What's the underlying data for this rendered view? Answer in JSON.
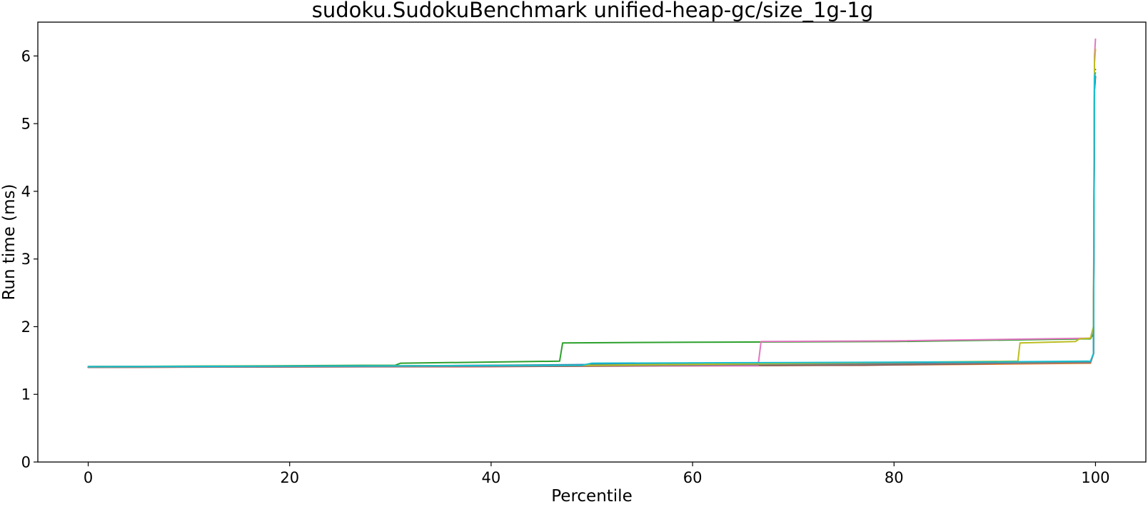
{
  "chart_data": {
    "type": "line",
    "title": "sudoku.SudokuBenchmark unified-heap-gc/size_1g-1g",
    "xlabel": "Percentile",
    "ylabel": "Run time (ms)",
    "xlim": [
      -5,
      105
    ],
    "ylim": [
      0,
      6.5
    ],
    "xticks": [
      0,
      20,
      40,
      60,
      80,
      100
    ],
    "yticks": [
      0,
      1,
      2,
      3,
      4,
      5,
      6
    ],
    "grid": false,
    "legend": "none",
    "series": [
      {
        "color": "#1f77b4",
        "x": [
          0,
          30,
          50,
          70,
          90,
          99.5,
          99.8,
          99.9,
          100
        ],
        "y": [
          1.41,
          1.42,
          1.44,
          1.46,
          1.47,
          1.48,
          1.6,
          5.8,
          5.8
        ]
      },
      {
        "color": "#ff7f0e",
        "x": [
          0,
          30,
          60,
          85,
          99.5,
          99.8,
          99.9,
          100
        ],
        "y": [
          1.4,
          1.41,
          1.42,
          1.44,
          1.46,
          1.6,
          5.5,
          5.7
        ]
      },
      {
        "color": "#2ca02c",
        "x": [
          0,
          30.5,
          31,
          46.8,
          47.1,
          60,
          80,
          99.5,
          99.8,
          99.9,
          100
        ],
        "y": [
          1.41,
          1.43,
          1.46,
          1.49,
          1.76,
          1.77,
          1.78,
          1.82,
          1.9,
          5.6,
          5.7
        ]
      },
      {
        "color": "#d62728",
        "x": [
          0,
          40,
          70,
          90,
          99.5,
          99.8,
          99.9,
          100
        ],
        "y": [
          1.4,
          1.41,
          1.43,
          1.46,
          1.47,
          1.6,
          5.5,
          5.7
        ]
      },
      {
        "color": "#9467bd",
        "x": [
          0,
          50,
          80,
          99.5,
          99.8,
          99.9,
          100
        ],
        "y": [
          1.4,
          1.42,
          1.44,
          1.47,
          1.6,
          5.6,
          5.7
        ]
      },
      {
        "color": "#8c564b",
        "x": [
          0,
          50,
          77,
          88,
          99.5,
          99.8,
          99.9,
          100
        ],
        "y": [
          1.4,
          1.42,
          1.43,
          1.45,
          1.48,
          1.6,
          5.6,
          5.7
        ]
      },
      {
        "color": "#e377c2",
        "x": [
          0,
          40,
          66.5,
          66.8,
          80,
          99.5,
          99.8,
          99.9,
          100
        ],
        "y": [
          1.41,
          1.42,
          1.42,
          1.78,
          1.79,
          1.83,
          2.0,
          6.0,
          6.25
        ]
      },
      {
        "color": "#7f7f7f",
        "x": [
          0,
          50,
          80,
          99.5,
          99.8,
          99.9,
          100
        ],
        "y": [
          1.4,
          1.42,
          1.45,
          1.47,
          1.6,
          5.6,
          5.7
        ]
      },
      {
        "color": "#bcbd22",
        "x": [
          0,
          50,
          92.3,
          92.5,
          98,
          98.4,
          99.5,
          99.8,
          99.9,
          100
        ],
        "y": [
          1.41,
          1.43,
          1.49,
          1.76,
          1.78,
          1.82,
          1.83,
          2.0,
          5.9,
          6.1
        ]
      },
      {
        "color": "#17becf",
        "x": [
          0,
          30,
          49,
          50,
          70,
          90,
          99.5,
          99.8,
          99.9,
          100
        ],
        "y": [
          1.41,
          1.42,
          1.43,
          1.46,
          1.47,
          1.48,
          1.49,
          1.6,
          5.7,
          5.75
        ]
      }
    ]
  }
}
